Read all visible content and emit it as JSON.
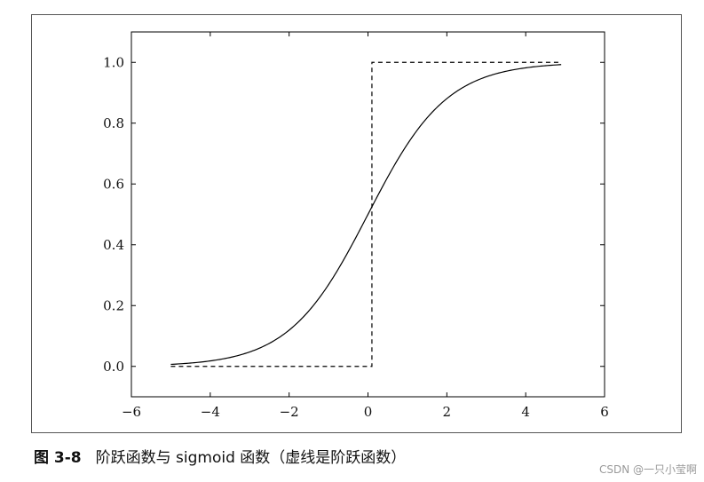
{
  "chart_data": {
    "type": "line",
    "title": "",
    "xlabel": "",
    "ylabel": "",
    "xlim": [
      -6,
      6
    ],
    "ylim": [
      -0.1,
      1.1
    ],
    "xticks": [
      -6,
      -4,
      -2,
      0,
      2,
      4,
      6
    ],
    "xtick_labels": [
      "−6",
      "−4",
      "−2",
      "0",
      "2",
      "4",
      "6"
    ],
    "yticks": [
      0.0,
      0.2,
      0.4,
      0.6,
      0.8,
      1.0
    ],
    "ytick_labels": [
      "0.0",
      "0.2",
      "0.4",
      "0.6",
      "0.8",
      "1.0"
    ],
    "grid": false,
    "series": [
      {
        "function": "sigmoid",
        "style": "solid",
        "color": "#000000",
        "x": [
          -5.0,
          -4.5,
          -4.0,
          -3.5,
          -3.0,
          -2.5,
          -2.0,
          -1.5,
          -1.0,
          -0.5,
          0.0,
          0.5,
          1.0,
          1.5,
          2.0,
          2.5,
          3.0,
          3.5,
          4.0,
          4.5,
          4.9
        ],
        "y": [
          0.0067,
          0.011,
          0.018,
          0.0293,
          0.0474,
          0.0759,
          0.1192,
          0.1824,
          0.2689,
          0.3775,
          0.5,
          0.6225,
          0.7311,
          0.8176,
          0.8808,
          0.9241,
          0.9526,
          0.9707,
          0.982,
          0.989,
          0.9926
        ]
      },
      {
        "function": "step",
        "style": "dashed",
        "color": "#000000",
        "x": [
          -5.0,
          0.0,
          0.0,
          0.1,
          0.1,
          4.9
        ],
        "y": [
          0.0,
          0.0,
          0.0,
          0.0,
          1.0,
          1.0
        ]
      }
    ]
  },
  "caption": {
    "number": "图 3-8",
    "text": "阶跃函数与 sigmoid 函数（虚线是阶跃函数）"
  },
  "watermark": "CSDN @一只小莹啊"
}
